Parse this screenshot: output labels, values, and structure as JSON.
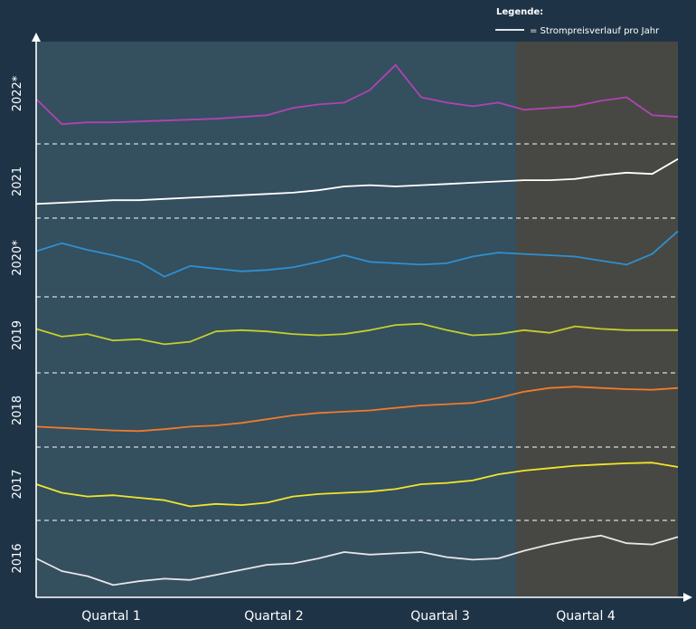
{
  "chart_data": {
    "type": "line",
    "title": "",
    "xlabel": "",
    "ylabel": "",
    "legend": {
      "title": "Legende:",
      "entry": "= Strompreisverlauf pro Jahr",
      "position": "top-right"
    },
    "x_tick_labels": [
      "Quartal 1",
      "Quartal 2",
      "Quartal 3",
      "Quartal 4"
    ],
    "y_tick_labels": [
      "2016",
      "2017",
      "2018",
      "2019",
      "2020*",
      "2021",
      "2022*"
    ],
    "x_range": [
      0,
      100
    ],
    "colors": {
      "background": "#1e3446",
      "plot_area": "#344f5e",
      "q4_area": "#474843",
      "axis": "#ffffff",
      "divider": "#ffffff"
    },
    "series": [
      {
        "year": "2016",
        "color": "#e6e6ea",
        "x": [
          0,
          4,
          8,
          12,
          16,
          20,
          24,
          28,
          32,
          36,
          40,
          44,
          48,
          52,
          56,
          60,
          64,
          68,
          72,
          76,
          80,
          84,
          88,
          92,
          96,
          100
        ],
        "y": [
          0.5,
          0.3,
          0.22,
          0.08,
          0.14,
          0.18,
          0.16,
          0.24,
          0.32,
          0.4,
          0.42,
          0.5,
          0.6,
          0.56,
          0.58,
          0.6,
          0.52,
          0.48,
          0.5,
          0.62,
          0.72,
          0.8,
          0.86,
          0.74,
          0.72,
          0.84
        ]
      },
      {
        "year": "2017",
        "color": "#f1e52c",
        "x": [
          0,
          4,
          8,
          12,
          16,
          20,
          24,
          28,
          32,
          36,
          40,
          44,
          48,
          52,
          56,
          60,
          64,
          68,
          72,
          76,
          80,
          84,
          88,
          92,
          96,
          100
        ],
        "y": [
          0.5,
          0.36,
          0.3,
          0.32,
          0.28,
          0.24,
          0.14,
          0.18,
          0.16,
          0.2,
          0.3,
          0.34,
          0.36,
          0.38,
          0.42,
          0.5,
          0.52,
          0.56,
          0.66,
          0.72,
          0.76,
          0.8,
          0.82,
          0.84,
          0.85,
          0.78
        ]
      },
      {
        "year": "2018",
        "color": "#f07a2b",
        "x": [
          0,
          4,
          8,
          12,
          16,
          20,
          24,
          28,
          32,
          36,
          40,
          44,
          48,
          52,
          56,
          60,
          64,
          68,
          72,
          76,
          80,
          84,
          88,
          92,
          96,
          100
        ],
        "y": [
          0.24,
          0.22,
          0.2,
          0.18,
          0.17,
          0.2,
          0.24,
          0.26,
          0.3,
          0.36,
          0.42,
          0.46,
          0.48,
          0.5,
          0.54,
          0.58,
          0.6,
          0.62,
          0.7,
          0.8,
          0.86,
          0.88,
          0.86,
          0.84,
          0.83,
          0.86
        ]
      },
      {
        "year": "2019",
        "color": "#c4cf2b",
        "x": [
          0,
          4,
          8,
          12,
          16,
          20,
          24,
          28,
          32,
          36,
          40,
          44,
          48,
          52,
          56,
          60,
          64,
          68,
          72,
          76,
          80,
          84,
          88,
          92,
          96,
          100
        ],
        "y": [
          0.6,
          0.48,
          0.52,
          0.42,
          0.44,
          0.36,
          0.4,
          0.56,
          0.58,
          0.56,
          0.52,
          0.5,
          0.52,
          0.58,
          0.66,
          0.68,
          0.58,
          0.5,
          0.52,
          0.58,
          0.54,
          0.64,
          0.6,
          0.58,
          0.58,
          0.58
        ]
      },
      {
        "year": "2020*",
        "color": "#2e90d1",
        "x": [
          0,
          4,
          8,
          12,
          16,
          20,
          24,
          28,
          32,
          36,
          40,
          44,
          48,
          52,
          56,
          60,
          64,
          68,
          72,
          76,
          80,
          84,
          88,
          92,
          96,
          100
        ],
        "y": [
          0.6,
          0.72,
          0.62,
          0.54,
          0.44,
          0.22,
          0.38,
          0.34,
          0.3,
          0.32,
          0.36,
          0.44,
          0.54,
          0.44,
          0.42,
          0.4,
          0.42,
          0.52,
          0.58,
          0.56,
          0.54,
          0.52,
          0.46,
          0.4,
          0.56,
          0.9
        ]
      },
      {
        "year": "2021",
        "color": "#ffffff",
        "x": [
          0,
          4,
          8,
          12,
          16,
          20,
          24,
          28,
          32,
          36,
          40,
          44,
          48,
          52,
          56,
          60,
          64,
          68,
          72,
          76,
          80,
          84,
          88,
          92,
          96,
          100
        ],
        "y": [
          0.14,
          0.16,
          0.18,
          0.2,
          0.2,
          0.22,
          0.24,
          0.26,
          0.28,
          0.3,
          0.32,
          0.36,
          0.42,
          0.44,
          0.42,
          0.44,
          0.46,
          0.48,
          0.5,
          0.52,
          0.52,
          0.54,
          0.6,
          0.64,
          0.62,
          0.86
        ]
      },
      {
        "year": "2022*",
        "color": "#b043b3",
        "x": [
          0,
          4,
          8,
          12,
          16,
          20,
          24,
          28,
          32,
          36,
          40,
          44,
          48,
          52,
          56,
          60,
          64,
          68,
          72,
          76,
          80,
          84,
          88,
          92,
          96,
          100
        ],
        "y": [
          0.44,
          0.16,
          0.18,
          0.18,
          0.19,
          0.2,
          0.21,
          0.22,
          0.24,
          0.26,
          0.34,
          0.38,
          0.4,
          0.54,
          0.82,
          0.46,
          0.4,
          0.36,
          0.4,
          0.32,
          0.34,
          0.36,
          0.42,
          0.46,
          0.26,
          0.24
        ]
      }
    ]
  }
}
